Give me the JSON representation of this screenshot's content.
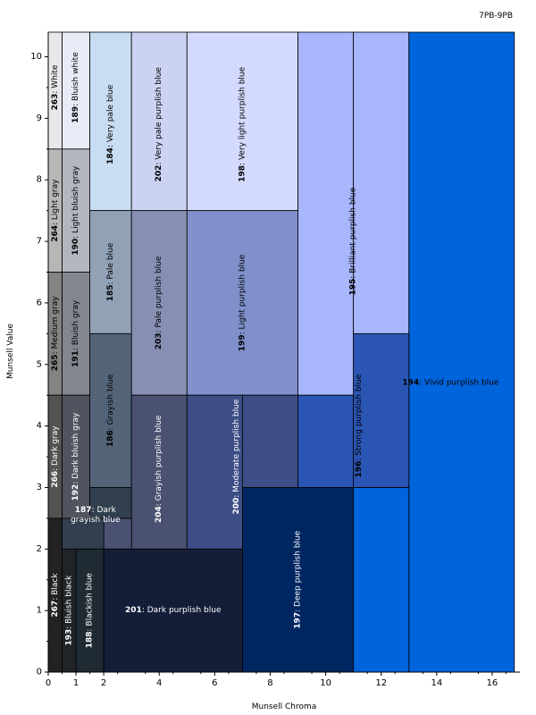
{
  "corner_label": "7PB-9PB",
  "chart_data": {
    "type": "heatmap",
    "title": "",
    "xlabel": "Munsell Chroma",
    "ylabel": "Munsell Value",
    "xlim": [
      0,
      17
    ],
    "ylim": [
      0,
      10.4
    ],
    "xticks": [
      0,
      1,
      2,
      4,
      6,
      8,
      10,
      12,
      14,
      16
    ],
    "yticks": [
      0,
      1,
      2,
      3,
      4,
      5,
      6,
      7,
      8,
      9,
      10
    ],
    "regions": [
      {
        "num": "263",
        "name": "White",
        "color": "#e9e7ea",
        "text": "dark",
        "orient": "v",
        "rects": [
          [
            0,
            8.5,
            0.5,
            10.4
          ]
        ],
        "label_at": [
          0.25,
          9.5
        ]
      },
      {
        "num": "189",
        "name": "Bluish white",
        "color": "#e7ebf5",
        "text": "dark",
        "orient": "v",
        "rects": [
          [
            0.5,
            8.5,
            1.5,
            10.4
          ]
        ],
        "label_at": [
          1.0,
          9.5
        ]
      },
      {
        "num": "184",
        "name": "Very pale blue",
        "color": "#c8dcf2",
        "text": "dark",
        "orient": "v",
        "rects": [
          [
            1.5,
            7.5,
            3,
            10.4
          ]
        ],
        "label_at": [
          2.25,
          8.9
        ]
      },
      {
        "num": "202",
        "name": "Very pale purplish blue",
        "color": "#cbd2f2",
        "text": "dark",
        "orient": "v",
        "rects": [
          [
            3,
            7.5,
            5,
            10.4
          ]
        ],
        "label_at": [
          4.0,
          8.9
        ]
      },
      {
        "num": "198",
        "name": "Very light purplish blue",
        "color": "#d3dafd",
        "text": "dark",
        "orient": "v",
        "rects": [
          [
            5,
            7.5,
            9,
            10.4
          ]
        ],
        "label_at": [
          7.0,
          8.9
        ]
      },
      {
        "num": "195",
        "name": "Brilliant purplish blue",
        "color": "#a8b6fc",
        "text": "dark",
        "orient": "v",
        "rects": [
          [
            9,
            4.5,
            11,
            10.4
          ],
          [
            11,
            5.5,
            13,
            10.4
          ]
        ],
        "label_at": [
          11.0,
          7.0
        ]
      },
      {
        "num": "194",
        "name": "Vivid purplish blue",
        "color": "#0064dc",
        "text": "dark",
        "orient": "h",
        "rects": [
          [
            13,
            0,
            16.8,
            10.4
          ],
          [
            11,
            0,
            13,
            3
          ]
        ],
        "label_at": [
          14.5,
          4.7
        ]
      },
      {
        "num": "264",
        "name": "Light gray",
        "color": "#b9b6b8",
        "text": "dark",
        "orient": "v",
        "rects": [
          [
            0,
            6.5,
            0.5,
            8.5
          ]
        ],
        "label_at": [
          0.25,
          7.5
        ]
      },
      {
        "num": "190",
        "name": "Light bluish gray",
        "color": "#b4b6bf",
        "text": "dark",
        "orient": "v",
        "rects": [
          [
            0.5,
            6.5,
            1.5,
            8.5
          ]
        ],
        "label_at": [
          1.0,
          7.5
        ]
      },
      {
        "num": "185",
        "name": "Pale blue",
        "color": "#91a2b7",
        "text": "dark",
        "orient": "v",
        "rects": [
          [
            1.5,
            5.5,
            3,
            7.5
          ]
        ],
        "label_at": [
          2.25,
          6.5
        ]
      },
      {
        "num": "203",
        "name": "Pale purplish blue",
        "color": "#8790b3",
        "text": "dark",
        "orient": "v",
        "rects": [
          [
            3,
            4.5,
            5,
            7.5
          ]
        ],
        "label_at": [
          4.0,
          6.0
        ]
      },
      {
        "num": "199",
        "name": "Light purplish blue",
        "color": "#7f90cb",
        "text": "dark",
        "orient": "v",
        "rects": [
          [
            5,
            4.5,
            9,
            7.5
          ]
        ],
        "label_at": [
          7.0,
          6.0
        ]
      },
      {
        "num": "265",
        "name": "Medium gray",
        "color": "#858283",
        "text": "dark",
        "orient": "v",
        "rects": [
          [
            0,
            4.5,
            0.5,
            6.5
          ]
        ],
        "label_at": [
          0.25,
          5.5
        ]
      },
      {
        "num": "191",
        "name": "Bluish gray",
        "color": "#82868f",
        "text": "dark",
        "orient": "v",
        "rects": [
          [
            0.5,
            4.5,
            1.5,
            6.5
          ]
        ],
        "label_at": [
          1.0,
          5.5
        ]
      },
      {
        "num": "186",
        "name": "Grayish blue",
        "color": "#536479",
        "text": "dark",
        "orient": "v",
        "rects": [
          [
            1.5,
            3,
            3,
            5.5
          ]
        ],
        "label_at": [
          2.25,
          4.25
        ]
      },
      {
        "num": "204",
        "name": "Grayish purplish blue",
        "color": "#4a5171",
        "text": "light",
        "orient": "v",
        "rects": [
          [
            3,
            2,
            5,
            4.5
          ],
          [
            2,
            2,
            3,
            2.5
          ]
        ],
        "label_at": [
          4.0,
          3.3
        ]
      },
      {
        "num": "200",
        "name": "Moderate purplish blue",
        "color": "#3d4d85",
        "text": "light",
        "orient": "v",
        "rects": [
          [
            5,
            2,
            7,
            4.5
          ],
          [
            7,
            3,
            9,
            4.5
          ]
        ],
        "label_at": [
          6.8,
          3.5
        ]
      },
      {
        "num": "196",
        "name": "Strong purplish blue",
        "color": "#2a55b3",
        "text": "dark",
        "orient": "v",
        "rects": [
          [
            9,
            3,
            11,
            4.5
          ],
          [
            11,
            3,
            13,
            5.5
          ]
        ],
        "label_at": [
          11.2,
          4.0
        ]
      },
      {
        "num": "266",
        "name": "Dark gray",
        "color": "#555253",
        "text": "light",
        "orient": "v",
        "rects": [
          [
            0,
            2.5,
            0.5,
            4.5
          ]
        ],
        "label_at": [
          0.25,
          3.5
        ]
      },
      {
        "num": "192",
        "name": "Dark bluish gray",
        "color": "#50545f",
        "text": "light",
        "orient": "v",
        "rects": [
          [
            0.5,
            2.5,
            1.5,
            4.5
          ]
        ],
        "label_at": [
          1.0,
          3.5
        ]
      },
      {
        "num": "187",
        "name": "Dark grayish blue",
        "color": "#323f4e",
        "text": "light",
        "orient": "h",
        "lines": [
          "Dark",
          "grayish blue"
        ],
        "rects": [
          [
            1.5,
            2.5,
            3,
            3
          ],
          [
            0.5,
            2,
            2,
            2.5
          ]
        ],
        "label_at": [
          1.7,
          2.55
        ]
      },
      {
        "num": "197",
        "name": "Deep purplish blue",
        "color": "#002662",
        "text": "light",
        "orient": "v",
        "rects": [
          [
            7,
            0,
            11,
            3
          ]
        ],
        "label_at": [
          9.0,
          1.5
        ]
      },
      {
        "num": "267",
        "name": "Black",
        "color": "#222222",
        "text": "light",
        "orient": "v",
        "rects": [
          [
            0,
            0,
            0.5,
            2.5
          ]
        ],
        "label_at": [
          0.25,
          1.25
        ]
      },
      {
        "num": "193",
        "name": "Bluish black",
        "color": "#202428",
        "text": "light",
        "orient": "v",
        "rects": [
          [
            0.5,
            0,
            1,
            2
          ]
        ],
        "label_at": [
          0.75,
          1.0
        ]
      },
      {
        "num": "188",
        "name": "Blackish blue",
        "color": "#1f2a33",
        "text": "light",
        "orient": "v",
        "rects": [
          [
            1,
            0,
            2,
            2
          ]
        ],
        "label_at": [
          1.5,
          1.0
        ]
      },
      {
        "num": "201",
        "name": "Dark purplish blue",
        "color": "#141e39",
        "text": "light",
        "orient": "h",
        "rects": [
          [
            2,
            0,
            7,
            2
          ]
        ],
        "label_at": [
          4.5,
          1.0
        ]
      }
    ]
  }
}
